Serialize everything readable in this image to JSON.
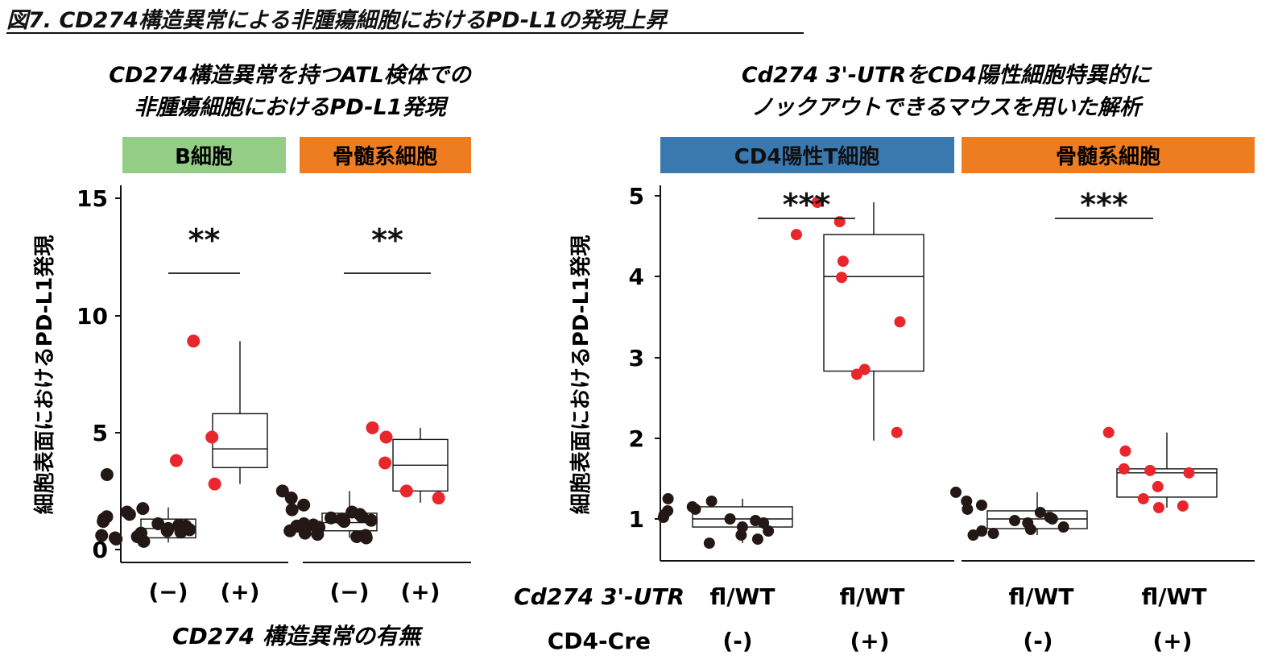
{
  "figure_title": "図7. CD274構造異常による非腫瘍細胞におけるPD-L1の発現上昇",
  "left_panel": {
    "title_line1": "CD274構造異常を持つATL検体での",
    "title_line2": "非腫瘍細胞におけるPD-L1発現",
    "ylabel": "細胞表面におけるPD-L1発現",
    "xlabel": "CD274 構造異常の有無",
    "facet_labels": [
      "B細胞",
      "骨髄系細胞"
    ],
    "facet_colors": [
      "#94cd85",
      "#ee7d22"
    ],
    "yticks": [
      "0",
      "5",
      "10",
      "15"
    ],
    "xtick_labels": [
      "(−)",
      "(+)",
      "(−)",
      "(+)"
    ],
    "sig_labels": [
      "**",
      "**"
    ]
  },
  "right_panel": {
    "title_line1": "Cd274 3'-UTRをCD4陽性細胞特異的に",
    "title_line2": "ノックアウトできるマウスを用いた解析",
    "ylabel": "細胞表面におけるPD-L1発現",
    "facet_labels": [
      "CD4陽性T細胞",
      "骨髄系細胞"
    ],
    "facet_colors": [
      "#3a78b0",
      "#ee7d22"
    ],
    "yticks": [
      "1",
      "2",
      "3",
      "4",
      "5"
    ],
    "row1_label": "Cd274 3'-UTR",
    "row1_values": [
      "fl/WT",
      "fl/WT",
      "fl/WT",
      "fl/WT"
    ],
    "row2_label": "CD4-Cre",
    "row2_values": [
      "(-)",
      "(+)",
      "(-)",
      "(+)"
    ],
    "sig_labels": [
      "***",
      "***"
    ]
  },
  "colors": {
    "negative_point": "#231815",
    "positive_point": "#e8262b"
  },
  "chart_data": [
    {
      "type": "box",
      "panel": "left",
      "ylim": [
        0,
        15
      ],
      "groups": [
        {
          "facet": "B細胞",
          "category": "(−)",
          "q1": 0.5,
          "median": 0.9,
          "q3": 1.3,
          "whisker_low": 0.3,
          "whisker_high": 1.8,
          "points": [
            3.2,
            1.75,
            1.6,
            1.5,
            1.4,
            1.3,
            1.2,
            1.1,
            1.05,
            1.0,
            0.9,
            0.85,
            0.8,
            0.75,
            0.7,
            0.6,
            0.55,
            0.5,
            0.45,
            0.35
          ]
        },
        {
          "facet": "B細胞",
          "category": "(+)",
          "q1": 3.5,
          "median": 4.3,
          "q3": 5.8,
          "whisker_low": 2.8,
          "whisker_high": 8.9,
          "points": [
            8.9,
            4.8,
            3.8,
            2.8
          ]
        },
        {
          "facet": "骨髄系細胞",
          "category": "(−)",
          "q1": 0.8,
          "median": 1.15,
          "q3": 1.55,
          "whisker_low": 0.5,
          "whisker_high": 2.5,
          "points": [
            2.5,
            2.2,
            1.9,
            1.7,
            1.6,
            1.5,
            1.4,
            1.35,
            1.3,
            1.25,
            1.2,
            1.1,
            1.05,
            1.0,
            0.95,
            0.9,
            0.8,
            0.7,
            0.65,
            0.6,
            0.55,
            0.5
          ]
        },
        {
          "facet": "骨髄系細胞",
          "category": "(+)",
          "q1": 2.5,
          "median": 3.6,
          "q3": 4.7,
          "whisker_low": 2.0,
          "whisker_high": 5.2,
          "points": [
            5.2,
            4.8,
            3.7,
            2.5,
            2.2
          ]
        }
      ],
      "comparisons": [
        {
          "facet": "B細胞",
          "label": "**",
          "y": 11.8
        },
        {
          "facet": "骨髄系細胞",
          "label": "**",
          "y": 11.8
        }
      ]
    },
    {
      "type": "box",
      "panel": "right",
      "ylim": [
        0.5,
        5.1
      ],
      "groups": [
        {
          "facet": "CD4陽性T細胞",
          "category": "(-)",
          "q1": 0.9,
          "median": 1.0,
          "q3": 1.15,
          "whisker_low": 0.7,
          "whisker_high": 1.25,
          "points": [
            1.25,
            1.22,
            1.15,
            1.12,
            1.1,
            1.05,
            1.02,
            1.0,
            0.98,
            0.95,
            0.9,
            0.85,
            0.8,
            0.75,
            0.7
          ]
        },
        {
          "facet": "CD4陽性T細胞",
          "category": "(+)",
          "q1": 2.83,
          "median": 4.0,
          "q3": 4.52,
          "whisker_low": 1.97,
          "whisker_high": 4.92,
          "points": [
            4.92,
            4.68,
            4.52,
            4.19,
            3.99,
            3.44,
            2.85,
            2.79,
            2.07
          ]
        },
        {
          "facet": "骨髄系細胞",
          "category": "(-)",
          "q1": 0.88,
          "median": 1.0,
          "q3": 1.1,
          "whisker_low": 0.8,
          "whisker_high": 1.33,
          "points": [
            1.33,
            1.22,
            1.17,
            1.12,
            1.08,
            1.02,
            1.0,
            0.98,
            0.95,
            0.9,
            0.87,
            0.85,
            0.82,
            0.8
          ]
        },
        {
          "facet": "骨髄系細胞",
          "category": "(+)",
          "q1": 1.27,
          "median": 1.57,
          "q3": 1.62,
          "whisker_low": 1.14,
          "whisker_high": 2.07,
          "points": [
            2.07,
            1.84,
            1.62,
            1.6,
            1.57,
            1.4,
            1.25,
            1.16,
            1.14
          ]
        }
      ],
      "comparisons": [
        {
          "facet": "CD4陽性T細胞",
          "label": "***",
          "y": 4.72
        },
        {
          "facet": "骨髄系細胞",
          "label": "***",
          "y": 4.72
        }
      ]
    }
  ]
}
